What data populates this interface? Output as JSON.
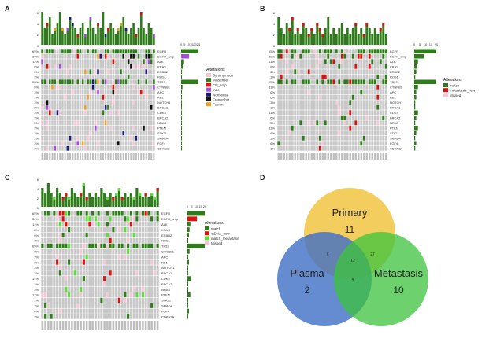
{
  "colors": {
    "grey": "#c8c8c8",
    "pink": "#f3c6d3",
    "synonymous": "#f3c6d3",
    "missense": "#2e7d1a",
    "cn_amp": "#e01010",
    "indel": "#a64de0",
    "nonsense": "#1c1c7c",
    "frameshift": "#111111",
    "fusion": "#f0a020",
    "match": "#2e7d1a",
    "metastasis_new": "#e01010",
    "ctdna_new": "#e01010",
    "match_metastasis": "#5ddc3a",
    "missed": "#f3c6d3",
    "venn_primary": "#f2c443",
    "venn_plasma": "#3f6fc6",
    "venn_metastasis": "#3cc33c"
  },
  "panel_a": {
    "label": "A",
    "genes": [
      "EGFR",
      "EGFR_amp",
      "ALK",
      "KRAS",
      "ERBB2",
      "ROS1",
      "TP53",
      "CTNNB1",
      "APC",
      "RB1",
      "NOTCH1",
      "BRCA1",
      "CDK4",
      "BRCA2",
      "NRAS",
      "PTEN",
      "STK11",
      "SMAD4",
      "FGF4",
      "CDKN2A"
    ],
    "pcts": [
      "65%",
      "30%",
      "11%",
      "8%",
      "3%",
      "3%",
      "65%",
      "5%",
      "3%",
      "3%",
      "3%",
      "3%",
      "3%",
      "3%",
      "3%",
      "3%",
      "3%",
      "3%",
      "3%",
      "3%"
    ],
    "axis_ticks": [
      "0",
      "5",
      "10",
      "15",
      "20",
      "25"
    ],
    "legend_title": "Alterations",
    "legend_items": [
      "Synonymous",
      "Missense",
      "CN_amp",
      "Indel",
      "Nonsense",
      "Frameshift",
      "Fusion"
    ],
    "y_ticks": [
      "6",
      "4",
      "2",
      "0"
    ],
    "bar_values": [
      6,
      3,
      4,
      5,
      2,
      3,
      4,
      6,
      3,
      2,
      3,
      5,
      4,
      3,
      2,
      3,
      4,
      2,
      3,
      5,
      3,
      2,
      4,
      3,
      6,
      2,
      3,
      4,
      3,
      2,
      3,
      4,
      5,
      3,
      2,
      3,
      4,
      2,
      3,
      6,
      3,
      2,
      4,
      3,
      2
    ]
  },
  "panel_b": {
    "label": "B",
    "genes": [
      "EGFR",
      "EGFR_amp",
      "ALK",
      "KRAS",
      "ERBB2",
      "ROS1",
      "TP53",
      "CTNNB1",
      "APC",
      "RB1",
      "NOTCH1",
      "BRCA1",
      "CDK4",
      "BRCA2",
      "NRAS",
      "PTEN",
      "STK11",
      "SMAD4",
      "FGF4",
      "CDKN2A"
    ],
    "pcts": [
      "65%",
      "29%",
      "11%",
      "8%",
      "6%",
      "3%",
      "65%",
      "11%",
      "6%",
      "6%",
      "3%",
      "3%",
      "11%",
      "6%",
      "3%",
      "11%",
      "6%",
      "3%",
      "6%",
      "3%"
    ],
    "axis_ticks": [
      "0",
      "5",
      "10",
      "15",
      "20"
    ],
    "legend_title": "Alterations",
    "legend_items": [
      "match",
      "metastasis_new",
      "Missed"
    ],
    "y_ticks": [
      "6",
      "4",
      "2",
      "0"
    ],
    "bar_values": [
      5,
      3,
      2,
      4,
      3,
      5,
      2,
      3,
      2,
      4,
      3,
      2,
      3,
      2,
      4,
      3,
      2,
      3,
      5,
      2,
      3,
      2,
      3,
      4,
      2,
      3,
      2,
      3,
      4,
      2,
      3,
      2,
      4,
      3,
      2,
      3,
      2,
      3,
      4,
      2
    ]
  },
  "panel_c": {
    "label": "C",
    "genes": [
      "EGFR",
      "EGFR_amp",
      "ALK",
      "KRAS",
      "ERBB2",
      "ROS1",
      "TP53",
      "CTNNB1",
      "APC",
      "RB1",
      "NOTCH1",
      "BRCA1",
      "CDK4",
      "BRCA2",
      "NRAS",
      "PTEN",
      "STK11",
      "SMAD4",
      "FGF4",
      "CDKN2A"
    ],
    "pcts": [
      "65%",
      "36%",
      "11%",
      "8%",
      "6%",
      "3%",
      "65%",
      "8%",
      "3%",
      "6%",
      "3%",
      "3%",
      "14%",
      "3%",
      "3%",
      "11%",
      "3%",
      "3%",
      "6%",
      "3%"
    ],
    "axis_ticks": [
      "0",
      "5",
      "10",
      "15",
      "20"
    ],
    "legend_title": "Alterations",
    "legend_items": [
      "match",
      "ctDNA_new",
      "match_metastasis",
      "Missed"
    ],
    "y_ticks": [
      "6",
      "4",
      "2",
      "0"
    ],
    "bar_values": [
      4,
      3,
      5,
      3,
      2,
      4,
      3,
      2,
      3,
      2,
      4,
      3,
      2,
      3,
      5,
      2,
      3,
      2,
      3,
      2,
      4,
      3,
      2,
      3,
      2,
      3,
      4,
      2,
      3,
      2,
      3,
      2,
      4,
      3,
      2,
      3,
      2,
      3,
      2,
      4
    ]
  },
  "panel_d": {
    "label": "D",
    "sets": [
      {
        "name": "Primary",
        "count": "11"
      },
      {
        "name": "Plasma",
        "count": "2"
      },
      {
        "name": "Metastasis",
        "count": "10"
      }
    ],
    "overlaps": [
      "6",
      "12",
      "27",
      "4"
    ]
  }
}
